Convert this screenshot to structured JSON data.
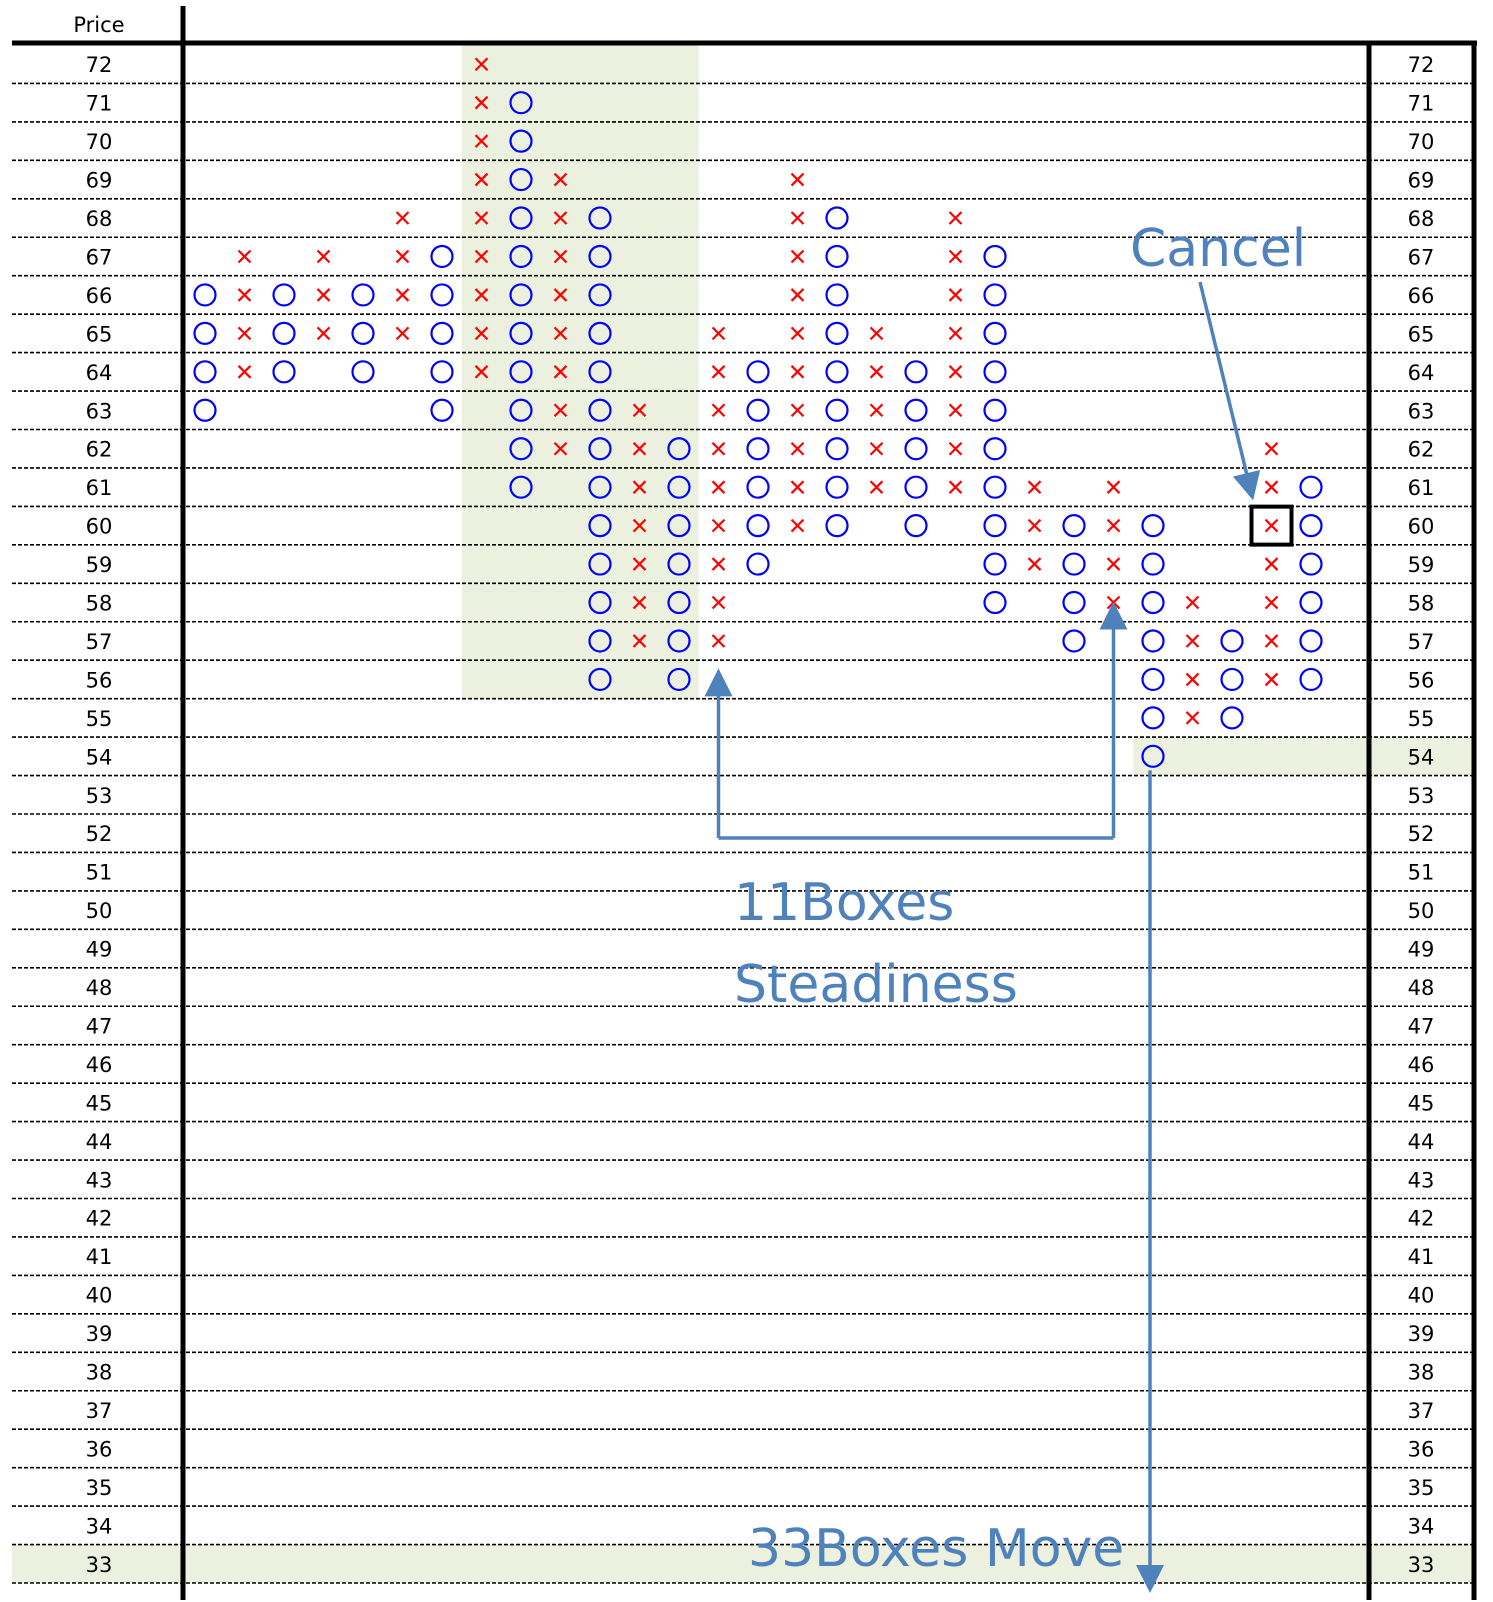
{
  "chart_data": {
    "type": "point-and-figure",
    "header": "Price",
    "y_range": [
      33,
      72
    ],
    "price_labels": [
      72,
      71,
      70,
      69,
      68,
      67,
      66,
      65,
      64,
      63,
      62,
      61,
      60,
      59,
      58,
      57,
      56,
      55,
      54,
      53,
      52,
      51,
      50,
      49,
      48,
      47,
      46,
      45,
      44,
      43,
      42,
      41,
      40,
      39,
      38,
      37,
      36,
      35,
      34,
      33
    ],
    "columns": [
      {
        "type": "O",
        "from": 63,
        "to": 66
      },
      {
        "type": "X",
        "from": 64,
        "to": 67
      },
      {
        "type": "O",
        "from": 64,
        "to": 66
      },
      {
        "type": "X",
        "from": 65,
        "to": 67
      },
      {
        "type": "O",
        "from": 64,
        "to": 66
      },
      {
        "type": "X",
        "from": 65,
        "to": 68
      },
      {
        "type": "O",
        "from": 63,
        "to": 67
      },
      {
        "type": "X",
        "from": 64,
        "to": 72
      },
      {
        "type": "O",
        "from": 61,
        "to": 71
      },
      {
        "type": "X",
        "from": 62,
        "to": 69
      },
      {
        "type": "O",
        "from": 56,
        "to": 68
      },
      {
        "type": "X",
        "from": 57,
        "to": 63
      },
      {
        "type": "O",
        "from": 56,
        "to": 62
      },
      {
        "type": "X",
        "from": 57,
        "to": 65
      },
      {
        "type": "O",
        "from": 59,
        "to": 64
      },
      {
        "type": "X",
        "from": 60,
        "to": 69
      },
      {
        "type": "O",
        "from": 60,
        "to": 68
      },
      {
        "type": "X",
        "from": 61,
        "to": 65
      },
      {
        "type": "O",
        "from": 60,
        "to": 64
      },
      {
        "type": "X",
        "from": 61,
        "to": 68
      },
      {
        "type": "O",
        "from": 58,
        "to": 67
      },
      {
        "type": "X",
        "from": 59,
        "to": 61
      },
      {
        "type": "O",
        "from": 57,
        "to": 60
      },
      {
        "type": "X",
        "from": 58,
        "to": 61
      },
      {
        "type": "O",
        "from": 54,
        "to": 60
      },
      {
        "type": "X",
        "from": 55,
        "to": 58
      },
      {
        "type": "O",
        "from": 55,
        "to": 57
      },
      {
        "type": "X",
        "from": 56,
        "to": 62
      },
      {
        "type": "O",
        "from": 56,
        "to": 61
      }
    ],
    "shaded_zones": [
      {
        "columns": [
          7,
          12
        ],
        "from": 56,
        "to": 72
      },
      {
        "columns": [
          24,
          29
        ],
        "from": 54,
        "to": 54
      },
      {
        "columns": [
          -1,
          29
        ],
        "from": 33,
        "to": 33
      }
    ],
    "highlight_box": {
      "column": 27,
      "price": 60
    },
    "annotations": {
      "cancel": "Cancel",
      "steadiness_line1": "11Boxes",
      "steadiness_line2": "Steadiness",
      "move": "33Boxes Move"
    },
    "colors": {
      "x_mark": "#ff0000",
      "o_mark": "#0000ff",
      "annotation": "#4f81bd",
      "shade": "#ebf1de"
    }
  }
}
